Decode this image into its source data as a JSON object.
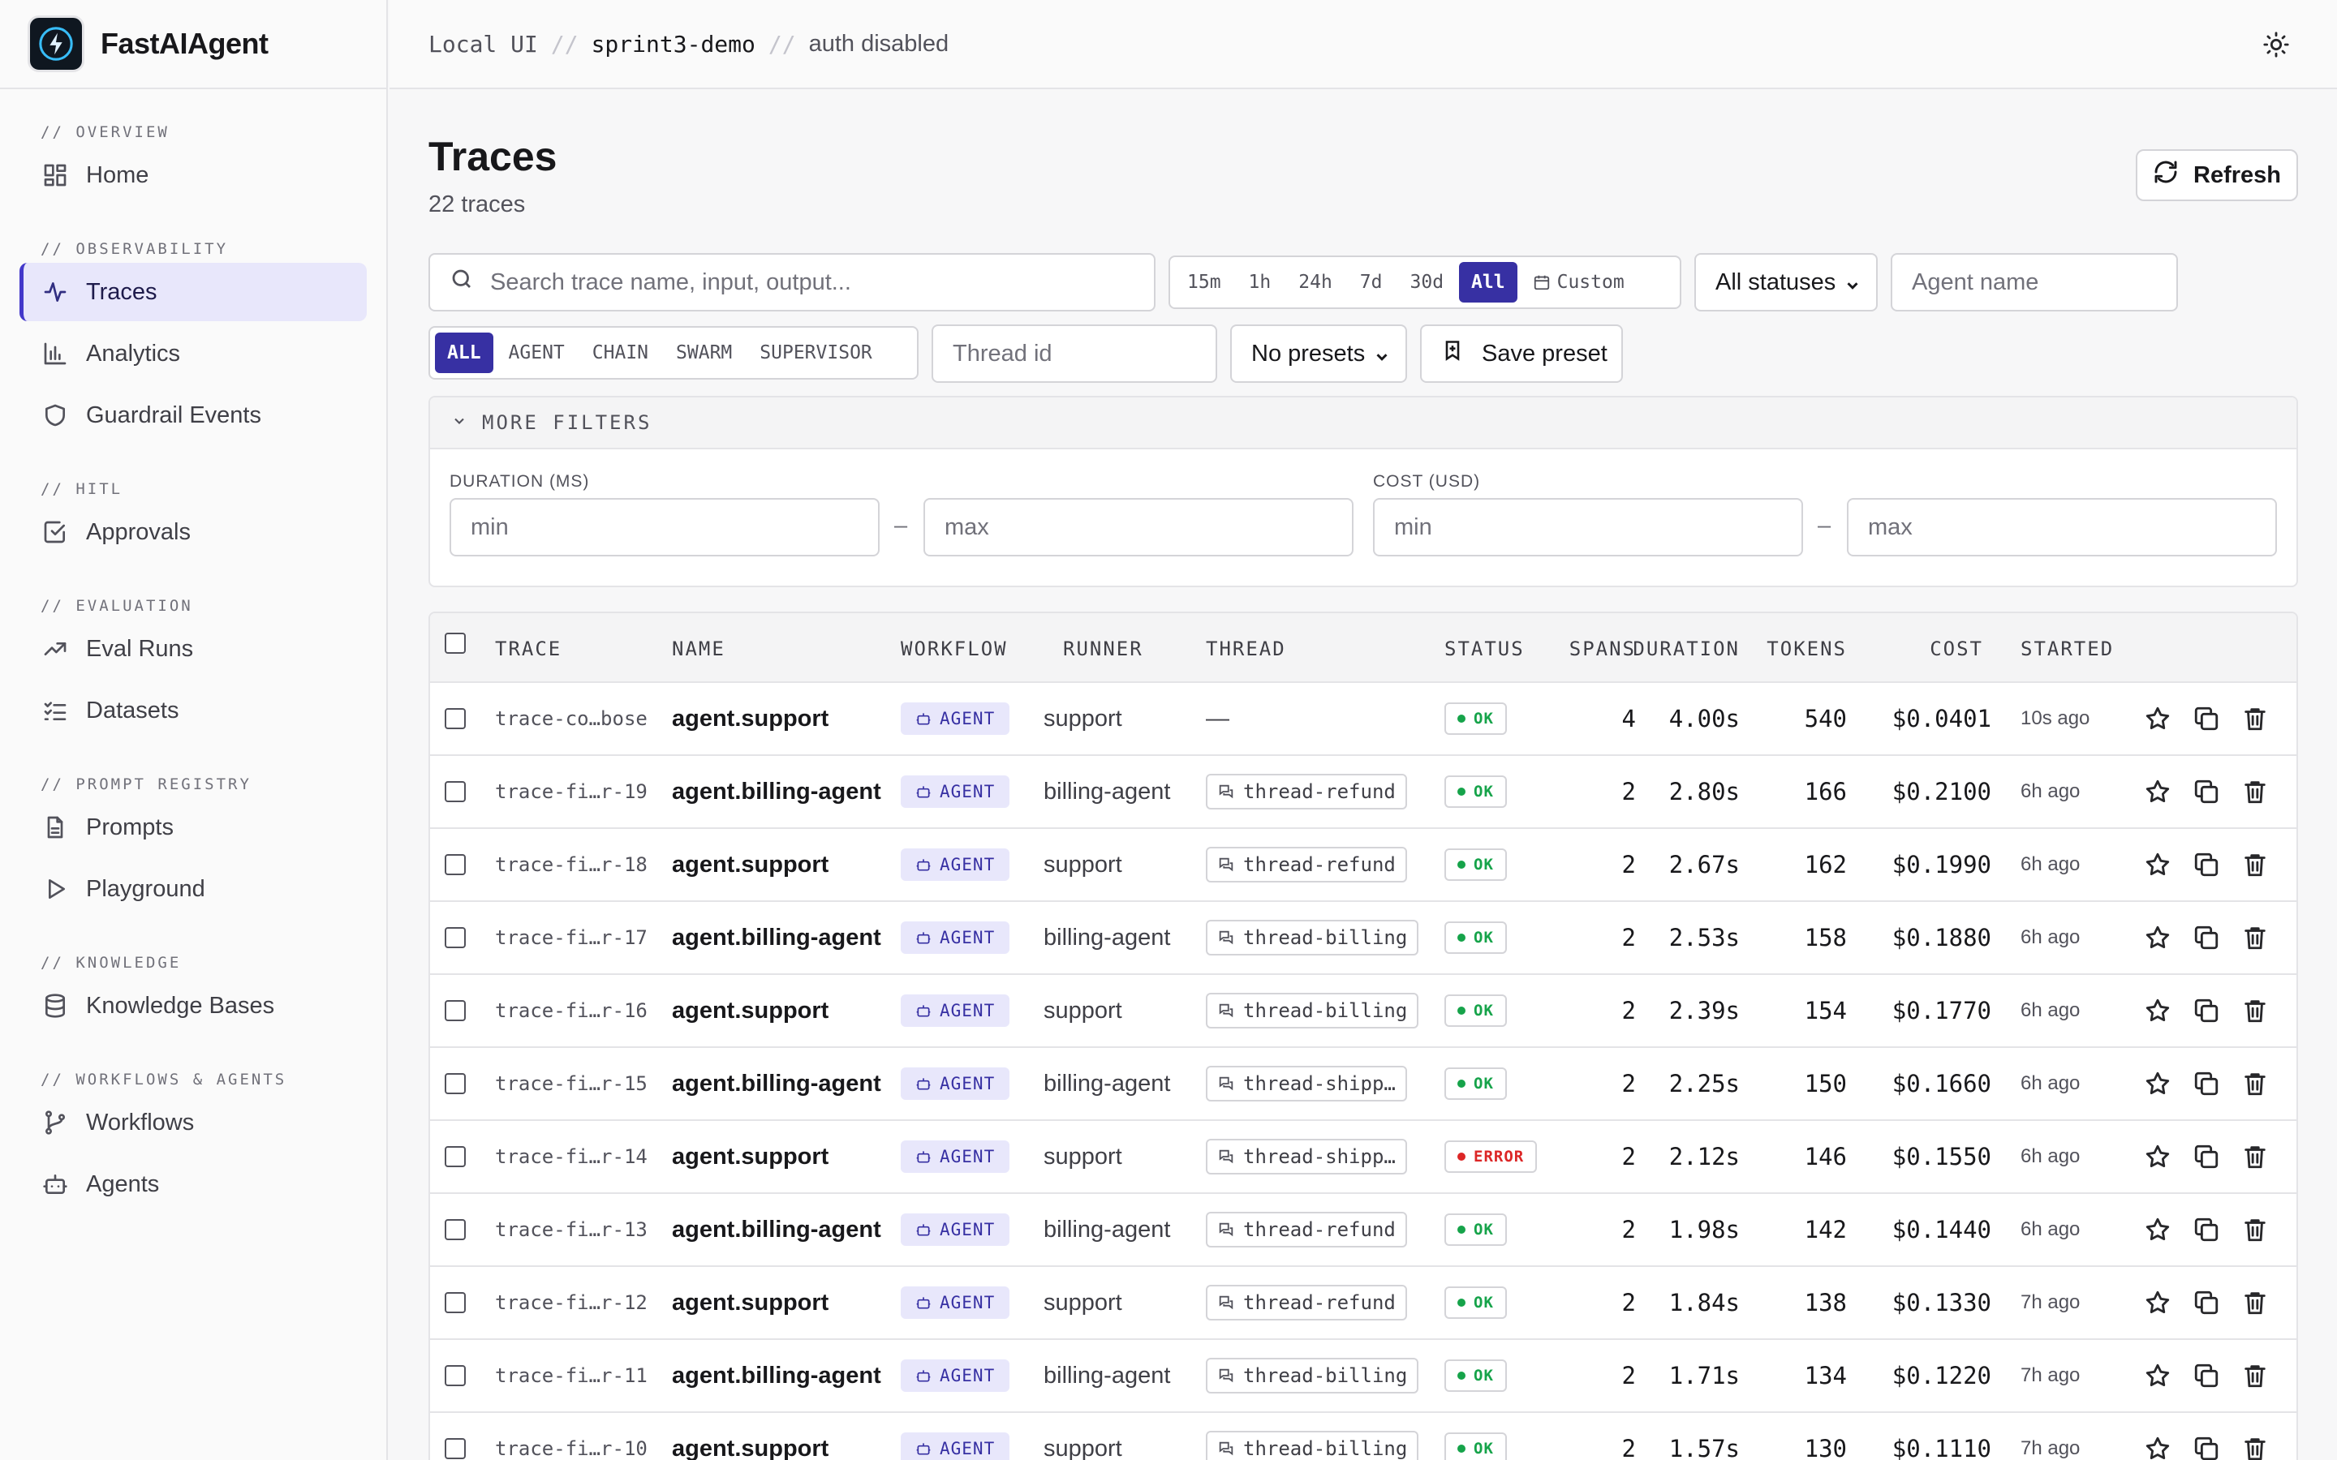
{
  "app": {
    "name": "FastAIAgent"
  },
  "breadcrumb": {
    "part1": "Local UI",
    "sep": "//",
    "part2": "sprint3-demo",
    "part3": "auth disabled"
  },
  "sidebar": {
    "sections": [
      {
        "title": "// OVERVIEW",
        "items": [
          {
            "label": "Home",
            "icon": "grid-icon"
          }
        ]
      },
      {
        "title": "// OBSERVABILITY",
        "items": [
          {
            "label": "Traces",
            "icon": "activity-icon",
            "active": true
          },
          {
            "label": "Analytics",
            "icon": "bar-chart-icon"
          },
          {
            "label": "Guardrail Events",
            "icon": "shield-icon"
          }
        ]
      },
      {
        "title": "// HITL",
        "items": [
          {
            "label": "Approvals",
            "icon": "check-square-icon"
          }
        ]
      },
      {
        "title": "// EVALUATION",
        "items": [
          {
            "label": "Eval Runs",
            "icon": "trending-up-icon"
          },
          {
            "label": "Datasets",
            "icon": "list-checks-icon"
          }
        ]
      },
      {
        "title": "// PROMPT REGISTRY",
        "items": [
          {
            "label": "Prompts",
            "icon": "file-text-icon"
          },
          {
            "label": "Playground",
            "icon": "play-icon"
          }
        ]
      },
      {
        "title": "// KNOWLEDGE",
        "items": [
          {
            "label": "Knowledge Bases",
            "icon": "database-icon"
          }
        ]
      },
      {
        "title": "// WORKFLOWS & AGENTS",
        "items": [
          {
            "label": "Workflows",
            "icon": "git-branch-icon"
          },
          {
            "label": "Agents",
            "icon": "bot-icon"
          }
        ]
      }
    ]
  },
  "page": {
    "title": "Traces",
    "subtitle": "22 traces",
    "refresh_label": "Refresh"
  },
  "filters": {
    "search_placeholder": "Search trace name, input, output...",
    "time_ranges": [
      "15m",
      "1h",
      "24h",
      "7d",
      "30d",
      "All"
    ],
    "time_active": "All",
    "custom_label": "Custom",
    "status_select": "All statuses",
    "agent_placeholder": "Agent name",
    "kinds": [
      "ALL",
      "AGENT",
      "CHAIN",
      "SWARM",
      "SUPERVISOR"
    ],
    "kind_active": "ALL",
    "thread_placeholder": "Thread id",
    "presets_select": "No presets",
    "save_preset_label": "Save preset",
    "more_filters_label": "MORE FILTERS",
    "duration_label": "DURATION (MS)",
    "cost_label": "COST (USD)",
    "min_placeholder": "min",
    "max_placeholder": "max",
    "range_sep": "–"
  },
  "table": {
    "columns": [
      "TRACE",
      "NAME",
      "WORKFLOW",
      "RUNNER",
      "THREAD",
      "STATUS",
      "SPANS",
      "DURATION",
      "TOKENS",
      "COST",
      "STARTED"
    ],
    "rows": [
      {
        "trace": "trace-co…bose",
        "name": "agent.support",
        "workflow": "AGENT",
        "runner": "support",
        "thread": "—",
        "status": "OK",
        "spans": "4",
        "duration": "4.00s",
        "tokens": "540",
        "cost": "$0.0401",
        "started": "10s ago"
      },
      {
        "trace": "trace-fi…r-19",
        "name": "agent.billing-agent",
        "workflow": "AGENT",
        "runner": "billing-agent",
        "thread": "thread-refund",
        "status": "OK",
        "spans": "2",
        "duration": "2.80s",
        "tokens": "166",
        "cost": "$0.2100",
        "started": "6h ago"
      },
      {
        "trace": "trace-fi…r-18",
        "name": "agent.support",
        "workflow": "AGENT",
        "runner": "support",
        "thread": "thread-refund",
        "status": "OK",
        "spans": "2",
        "duration": "2.67s",
        "tokens": "162",
        "cost": "$0.1990",
        "started": "6h ago"
      },
      {
        "trace": "trace-fi…r-17",
        "name": "agent.billing-agent",
        "workflow": "AGENT",
        "runner": "billing-agent",
        "thread": "thread-billing",
        "status": "OK",
        "spans": "2",
        "duration": "2.53s",
        "tokens": "158",
        "cost": "$0.1880",
        "started": "6h ago"
      },
      {
        "trace": "trace-fi…r-16",
        "name": "agent.support",
        "workflow": "AGENT",
        "runner": "support",
        "thread": "thread-billing",
        "status": "OK",
        "spans": "2",
        "duration": "2.39s",
        "tokens": "154",
        "cost": "$0.1770",
        "started": "6h ago"
      },
      {
        "trace": "trace-fi…r-15",
        "name": "agent.billing-agent",
        "workflow": "AGENT",
        "runner": "billing-agent",
        "thread": "thread-shipp…",
        "status": "OK",
        "spans": "2",
        "duration": "2.25s",
        "tokens": "150",
        "cost": "$0.1660",
        "started": "6h ago"
      },
      {
        "trace": "trace-fi…r-14",
        "name": "agent.support",
        "workflow": "AGENT",
        "runner": "support",
        "thread": "thread-shipp…",
        "status": "ERROR",
        "spans": "2",
        "duration": "2.12s",
        "tokens": "146",
        "cost": "$0.1550",
        "started": "6h ago"
      },
      {
        "trace": "trace-fi…r-13",
        "name": "agent.billing-agent",
        "workflow": "AGENT",
        "runner": "billing-agent",
        "thread": "thread-refund",
        "status": "OK",
        "spans": "2",
        "duration": "1.98s",
        "tokens": "142",
        "cost": "$0.1440",
        "started": "6h ago"
      },
      {
        "trace": "trace-fi…r-12",
        "name": "agent.support",
        "workflow": "AGENT",
        "runner": "support",
        "thread": "thread-refund",
        "status": "OK",
        "spans": "2",
        "duration": "1.84s",
        "tokens": "138",
        "cost": "$0.1330",
        "started": "7h ago"
      },
      {
        "trace": "trace-fi…r-11",
        "name": "agent.billing-agent",
        "workflow": "AGENT",
        "runner": "billing-agent",
        "thread": "thread-billing",
        "status": "OK",
        "spans": "2",
        "duration": "1.71s",
        "tokens": "134",
        "cost": "$0.1220",
        "started": "7h ago"
      },
      {
        "trace": "trace-fi…r-10",
        "name": "agent.support",
        "workflow": "AGENT",
        "runner": "support",
        "thread": "thread-billing",
        "status": "OK",
        "spans": "2",
        "duration": "1.57s",
        "tokens": "130",
        "cost": "$0.1110",
        "started": "7h ago"
      }
    ]
  },
  "colors": {
    "accent": "#3730a3",
    "ok": "#16a34a",
    "error": "#dc2626",
    "active_nav_bg": "#e8e7fb"
  }
}
